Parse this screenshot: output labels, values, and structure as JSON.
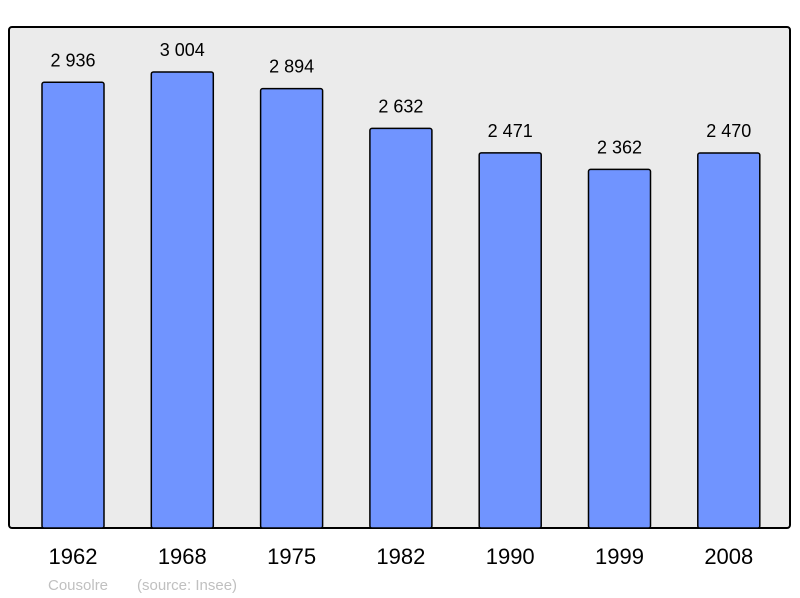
{
  "chart_data": {
    "type": "bar",
    "categories": [
      "1962",
      "1968",
      "1975",
      "1982",
      "1990",
      "1999",
      "2008"
    ],
    "values": [
      2936,
      3004,
      2894,
      2632,
      2471,
      2362,
      2470
    ],
    "value_labels": [
      "2 936",
      "3 004",
      "2 894",
      "2 632",
      "2 471",
      "2 362",
      "2 470"
    ],
    "title": "",
    "xlabel": "",
    "ylabel": "",
    "ylim": [
      0,
      3300
    ],
    "grid": false,
    "caption_place": "Cousolre",
    "caption_source": "(source: Insee)",
    "colors": {
      "bar": "#7094ff",
      "background": "#ebebeb",
      "frame": "#000000",
      "caption": "#c0c0c0"
    }
  }
}
